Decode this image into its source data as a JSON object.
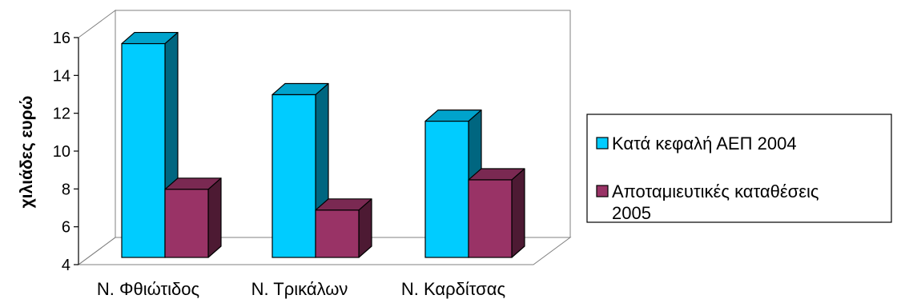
{
  "chart_data": {
    "type": "bar",
    "style": "3d-clustered-column",
    "ylabel": "χιλιάδες ευρώ",
    "xlabel": "",
    "ylim": [
      4,
      16
    ],
    "yticks": [
      4,
      6,
      8,
      10,
      12,
      14,
      16
    ],
    "grid": false,
    "legend_position": "right",
    "categories": [
      "Ν. Φθιώτιδος",
      "Ν. Τρικάλων",
      "Ν. Καρδίτσας"
    ],
    "series": [
      {
        "name": "Κατά κεφαλή ΑΕΠ 2004",
        "legend_lines": [
          "Κατά κεφαλή ΑΕΠ 2004"
        ],
        "values": [
          15.3,
          12.6,
          11.2
        ],
        "color": "#00CCFF",
        "side_color": "#006680",
        "top_color": "#00A3CC"
      },
      {
        "name": "Αποταμιευτικές καταθέσεις 2005",
        "legend_lines": [
          "Αποταμιευτικές καταθέσεις",
          "2005"
        ],
        "values": [
          7.6,
          6.5,
          8.1
        ],
        "color": "#993366",
        "side_color": "#4D1A33",
        "top_color": "#7A2952"
      }
    ]
  }
}
